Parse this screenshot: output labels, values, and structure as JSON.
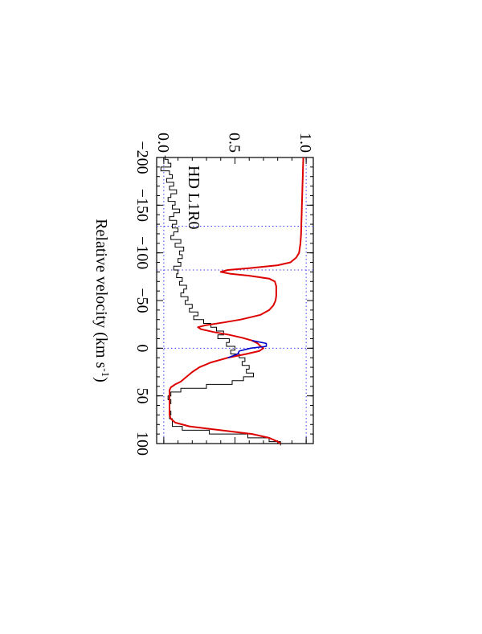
{
  "chart_data": {
    "type": "line",
    "orientation": "rotated 90 degrees clockwise",
    "annotation": "HD L1R0",
    "xlabel": "Relative velocity (km s",
    "xlabel_sup": "-1",
    "xlabel_close": ")",
    "ylabel": "",
    "xlim": [
      -200,
      100
    ],
    "ylim": [
      -0.05,
      1.05
    ],
    "x_ticks": [
      -200,
      -150,
      -100,
      -50,
      0,
      50,
      100
    ],
    "x_tick_labels": [
      "−200",
      "−150",
      "−100",
      "−50",
      "0",
      "50",
      "100"
    ],
    "y_ticks": [
      0.0,
      0.5,
      1.0
    ],
    "y_tick_labels": [
      "0.0",
      "0.5",
      "1.0"
    ],
    "reference_lines": {
      "horizontal": [
        0.0,
        1.0
      ],
      "vertical": [
        -128,
        -82,
        0
      ],
      "color": "#3b3bff"
    },
    "series": [
      {
        "role": "observed data (histogram)",
        "color": "#000000",
        "x": [
          -200,
          -196,
          -192,
          -188,
          -184,
          -180,
          -176,
          -172,
          -168,
          -164,
          -160,
          -156,
          -152,
          -148,
          -144,
          -140,
          -136,
          -132,
          -128,
          -124,
          -120,
          -116,
          -112,
          -108,
          -104,
          -100,
          -96,
          -92,
          -88,
          -84,
          -80,
          -76,
          -72,
          -68,
          -64,
          -60,
          -56,
          -52,
          -48,
          -44,
          -40,
          -36,
          -32,
          -28,
          -24,
          -20,
          -16,
          -12,
          -8,
          -4,
          0,
          4,
          8,
          12,
          16,
          20,
          24,
          28,
          32,
          36,
          40,
          44,
          48,
          52,
          56,
          60,
          64,
          68,
          72,
          76,
          80,
          84,
          88,
          92,
          96,
          100
        ],
        "y": [
          0.01,
          0.03,
          0.05,
          -0.02,
          0.04,
          0.06,
          0.02,
          0.07,
          0.04,
          0.09,
          0.05,
          0.03,
          0.08,
          0.06,
          0.11,
          0.07,
          0.04,
          0.09,
          0.06,
          0.1,
          0.07,
          0.05,
          0.12,
          0.08,
          0.14,
          0.11,
          0.13,
          0.1,
          0.12,
          0.07,
          0.1,
          0.09,
          0.13,
          0.11,
          0.16,
          0.14,
          0.12,
          0.17,
          0.15,
          0.2,
          0.18,
          0.24,
          0.21,
          0.28,
          0.33,
          0.37,
          0.42,
          0.38,
          0.46,
          0.44,
          0.5,
          0.47,
          0.53,
          0.57,
          0.55,
          0.6,
          0.58,
          0.63,
          0.56,
          0.48,
          0.3,
          0.12,
          0.05,
          0.03,
          0.05,
          0.04,
          0.04,
          0.05,
          0.04,
          0.06,
          0.06,
          0.13,
          0.32,
          0.59,
          0.74,
          0.82
        ]
      },
      {
        "role": "model fit",
        "color": "#dd0000",
        "x": [
          -200,
          -190,
          -180,
          -170,
          -160,
          -150,
          -140,
          -130,
          -120,
          -110,
          -100,
          -95,
          -90,
          -87,
          -84,
          -82,
          -80,
          -78,
          -76,
          -73,
          -70,
          -65,
          -60,
          -55,
          -50,
          -45,
          -40,
          -35,
          -30,
          -27,
          -24,
          -22,
          -20,
          -17,
          -14,
          -11,
          -8,
          -5,
          -2,
          0,
          3,
          6,
          10,
          15,
          20,
          25,
          30,
          35,
          38,
          41,
          44,
          47,
          50,
          55,
          60,
          65,
          70,
          74,
          78,
          82,
          86,
          90,
          94,
          98,
          100
        ],
        "y": [
          0.98,
          0.978,
          0.976,
          0.974,
          0.972,
          0.97,
          0.968,
          0.966,
          0.964,
          0.96,
          0.95,
          0.93,
          0.89,
          0.8,
          0.6,
          0.45,
          0.4,
          0.47,
          0.6,
          0.74,
          0.78,
          0.79,
          0.79,
          0.79,
          0.785,
          0.77,
          0.74,
          0.68,
          0.54,
          0.42,
          0.29,
          0.24,
          0.26,
          0.35,
          0.46,
          0.55,
          0.62,
          0.66,
          0.68,
          0.7,
          0.67,
          0.58,
          0.45,
          0.33,
          0.25,
          0.2,
          0.16,
          0.12,
          0.08,
          0.05,
          0.04,
          0.04,
          0.04,
          0.04,
          0.04,
          0.04,
          0.04,
          0.05,
          0.08,
          0.18,
          0.4,
          0.62,
          0.74,
          0.8,
          0.82
        ]
      },
      {
        "role": "model fit (alternate component)",
        "color": "#0000cc",
        "x": [
          -8,
          -5,
          -2,
          0,
          3,
          6,
          10
        ],
        "y": [
          0.62,
          0.72,
          0.72,
          0.61,
          0.53,
          0.52,
          0.45
        ]
      }
    ]
  }
}
